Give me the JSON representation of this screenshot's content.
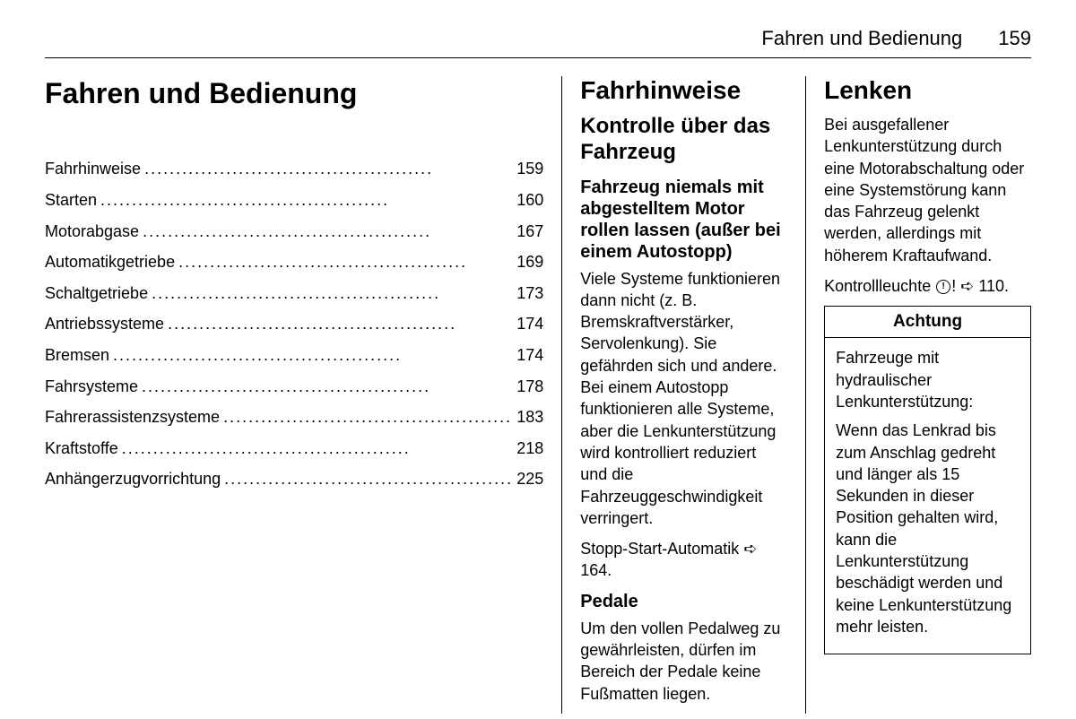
{
  "header": {
    "title": "Fahren und Bedienung",
    "page_number": "159"
  },
  "col1": {
    "chapter_title": "Fahren und Bedienung",
    "toc": [
      {
        "label": "Fahrhinweise",
        "page": "159"
      },
      {
        "label": "Starten",
        "page": "160"
      },
      {
        "label": "Motorabgase",
        "page": "167"
      },
      {
        "label": "Automatikgetriebe",
        "page": "169"
      },
      {
        "label": "Schaltgetriebe",
        "page": "173"
      },
      {
        "label": "Antriebssysteme",
        "page": "174"
      },
      {
        "label": "Bremsen",
        "page": "174"
      },
      {
        "label": "Fahrsysteme",
        "page": "178"
      },
      {
        "label": "Fahrerassistenzsysteme",
        "page": "183"
      },
      {
        "label": "Kraftstoffe",
        "page": "218"
      },
      {
        "label": "Anhängerzugvorrichtung",
        "page": "225"
      }
    ]
  },
  "col2": {
    "section_title": "Fahrhinweise",
    "subsection_title": "Kontrolle über das Fahrzeug",
    "subsub1_title": "Fahrzeug niemals mit abgestelltem Motor rollen lassen (außer bei einem Autostopp)",
    "subsub1_body": "Viele Systeme funktionieren dann nicht (z. B. Bremskraftverstärker, Servolenkung). Sie gefährden sich und andere. Bei einem Autostopp funktionieren alle Systeme, aber die Lenkunterstützung wird kontrolliert reduziert und die Fahrzeuggeschwindigkeit verringert.",
    "subsub1_ref_prefix": "Stopp-Start-Automatik ",
    "subsub1_ref_page": " 164.",
    "subsub2_title": "Pedale",
    "subsub2_body": "Um den vollen Pedalweg zu gewährleisten, dürfen im Bereich der Pedale keine Fußmatten liegen."
  },
  "col3": {
    "section_title": "Lenken",
    "body1": "Bei ausgefallener Lenkunterstützung durch eine Motorabschaltung oder eine Systemstörung kann das Fahrzeug gelenkt werden, allerdings mit höherem Kraftaufwand.",
    "ref_prefix": "Kontrollleuchte ",
    "ref_page": " 110.",
    "warning": {
      "title": "Achtung",
      "p1": "Fahrzeuge mit hydraulischer Lenkunterstützung:",
      "p2": "Wenn das Lenkrad bis zum Anschlag gedreht und länger als 15 Sekunden in dieser Position gehalten wird, kann die Lenkunterstützung beschädigt werden und keine Lenkunterstützung mehr leisten."
    }
  },
  "icons": {
    "arrow": "➪"
  }
}
